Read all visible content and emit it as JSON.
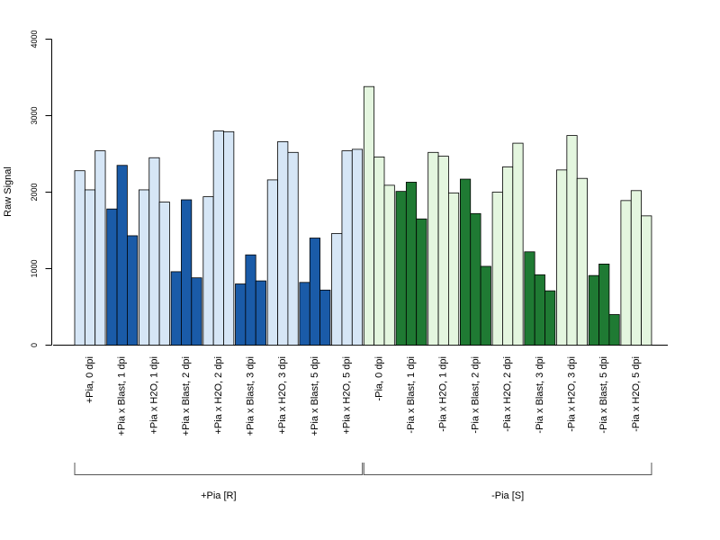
{
  "chart_data": {
    "type": "bar",
    "title": "",
    "xlabel": "",
    "ylabel": "Raw Signal",
    "ylim": [
      0,
      4000
    ],
    "yticks": [
      0,
      1000,
      2000,
      3000,
      4000
    ],
    "grid": false,
    "colors": {
      "plus_light": "#d6e6f6",
      "plus_dark": "#1a5ba8",
      "minus_light": "#e4f6df",
      "minus_dark": "#1f7a33"
    },
    "categories": [
      {
        "label": "+Pia, 0 dpi",
        "values": [
          2280,
          2030,
          2540
        ],
        "color": "plus_light"
      },
      {
        "label": "+Pia x Blast, 1 dpi",
        "values": [
          1780,
          2350,
          1430
        ],
        "color": "plus_dark"
      },
      {
        "label": "+Pia x H2O, 1 dpi",
        "values": [
          2030,
          2450,
          1870
        ],
        "color": "plus_light"
      },
      {
        "label": "+Pia x Blast, 2 dpi",
        "values": [
          960,
          1900,
          880
        ],
        "color": "plus_dark"
      },
      {
        "label": "+Pia x H2O, 2 dpi",
        "values": [
          1940,
          2800,
          2790
        ],
        "color": "plus_light"
      },
      {
        "label": "+Pia x Blast, 3 dpi",
        "values": [
          800,
          1180,
          840
        ],
        "color": "plus_dark"
      },
      {
        "label": "+Pia x H2O, 3 dpi",
        "values": [
          2160,
          2660,
          2520
        ],
        "color": "plus_light"
      },
      {
        "label": "+Pia x Blast, 5 dpi",
        "values": [
          820,
          1400,
          720
        ],
        "color": "plus_dark"
      },
      {
        "label": "+Pia x H2O, 5 dpi",
        "values": [
          1460,
          2540,
          2560
        ],
        "color": "plus_light"
      },
      {
        "label": "-Pia, 0 dpi",
        "values": [
          3380,
          2460,
          2090
        ],
        "color": "minus_light"
      },
      {
        "label": "-Pia x Blast, 1 dpi",
        "values": [
          2010,
          2130,
          1650
        ],
        "color": "minus_dark"
      },
      {
        "label": "-Pia x H2O, 1 dpi",
        "values": [
          2520,
          2470,
          1990
        ],
        "color": "minus_light"
      },
      {
        "label": "-Pia x Blast, 2 dpi",
        "values": [
          2170,
          1720,
          1030
        ],
        "color": "minus_dark"
      },
      {
        "label": "-Pia x H2O, 2 dpi",
        "values": [
          2000,
          2330,
          2640
        ],
        "color": "minus_light"
      },
      {
        "label": "-Pia x Blast, 3 dpi",
        "values": [
          1220,
          920,
          710
        ],
        "color": "minus_dark"
      },
      {
        "label": "-Pia x H2O, 3 dpi",
        "values": [
          2290,
          2740,
          2180
        ],
        "color": "minus_light"
      },
      {
        "label": "-Pia x Blast, 5 dpi",
        "values": [
          910,
          1060,
          400
        ],
        "color": "minus_dark"
      },
      {
        "label": "-Pia x H2O, 5 dpi",
        "values": [
          1890,
          2020,
          1690
        ],
        "color": "minus_light"
      }
    ],
    "groups": [
      {
        "label": "+Pia [R]",
        "categories": 9
      },
      {
        "label": "-Pia [S]",
        "categories": 9
      }
    ]
  }
}
